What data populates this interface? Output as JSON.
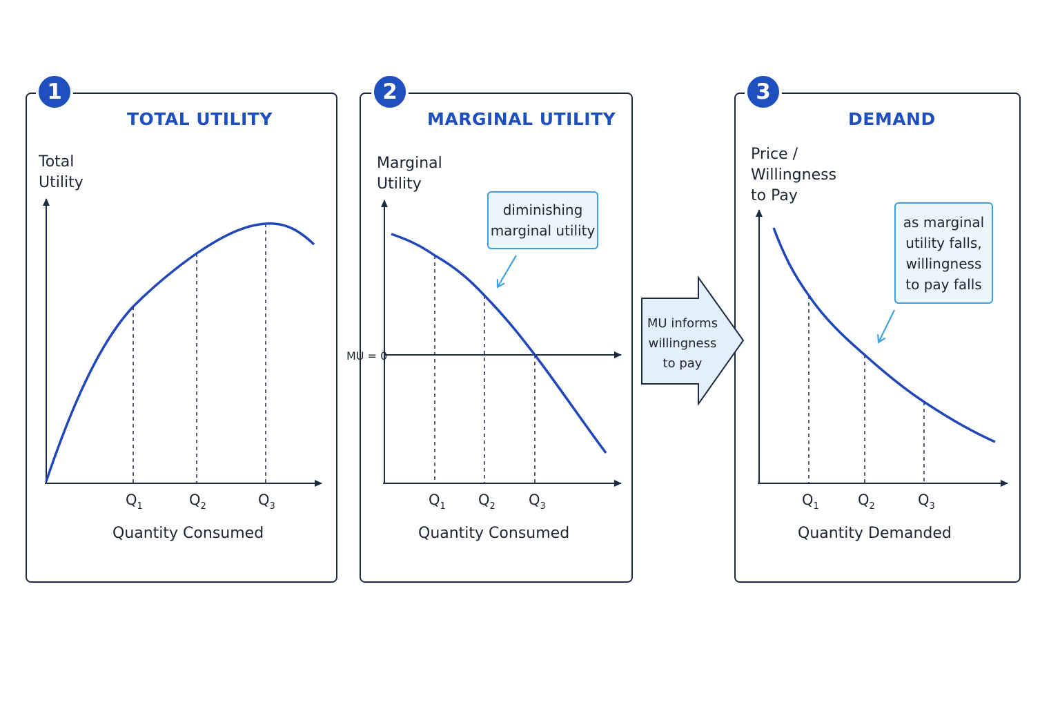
{
  "panels": [
    {
      "number": "1",
      "title": "TOTAL UTILITY",
      "ylabel_line1": "Total",
      "ylabel_line2": "Utility",
      "xlabel": "Quantity Consumed",
      "ticks": [
        "Q",
        "Q",
        "Q"
      ],
      "tick_subs": [
        "1",
        "2",
        "3"
      ]
    },
    {
      "number": "2",
      "title": "MARGINAL UTILITY",
      "ylabel_line1": "Marginal",
      "ylabel_line2": "Utility",
      "xlabel": "Quantity Consumed",
      "mu_zero_label": "MU = 0",
      "callout_line1": "diminishing",
      "callout_line2": "marginal utility",
      "ticks": [
        "Q",
        "Q",
        "Q"
      ],
      "tick_subs": [
        "1",
        "2",
        "3"
      ]
    },
    {
      "number": "3",
      "title": "DEMAND",
      "ylabel_line1": "Price /",
      "ylabel_line2": "Willingness",
      "ylabel_line3": "to Pay",
      "xlabel": "Quantity Demanded",
      "callout_line1": "as marginal",
      "callout_line2": "utility falls,",
      "callout_line3": "willingness",
      "callout_line4": "to pay falls",
      "ticks": [
        "Q",
        "Q",
        "Q"
      ],
      "tick_subs": [
        "1",
        "2",
        "3"
      ]
    }
  ],
  "connector": {
    "line1": "MU informs",
    "line2": "willingness",
    "line3": "to pay"
  },
  "colors": {
    "curve": "#2146b8",
    "accent": "#1f4fbf",
    "axis": "#1d2a44",
    "callout_border": "#3fa0e0",
    "callout_fill": "#eaf5fc"
  }
}
